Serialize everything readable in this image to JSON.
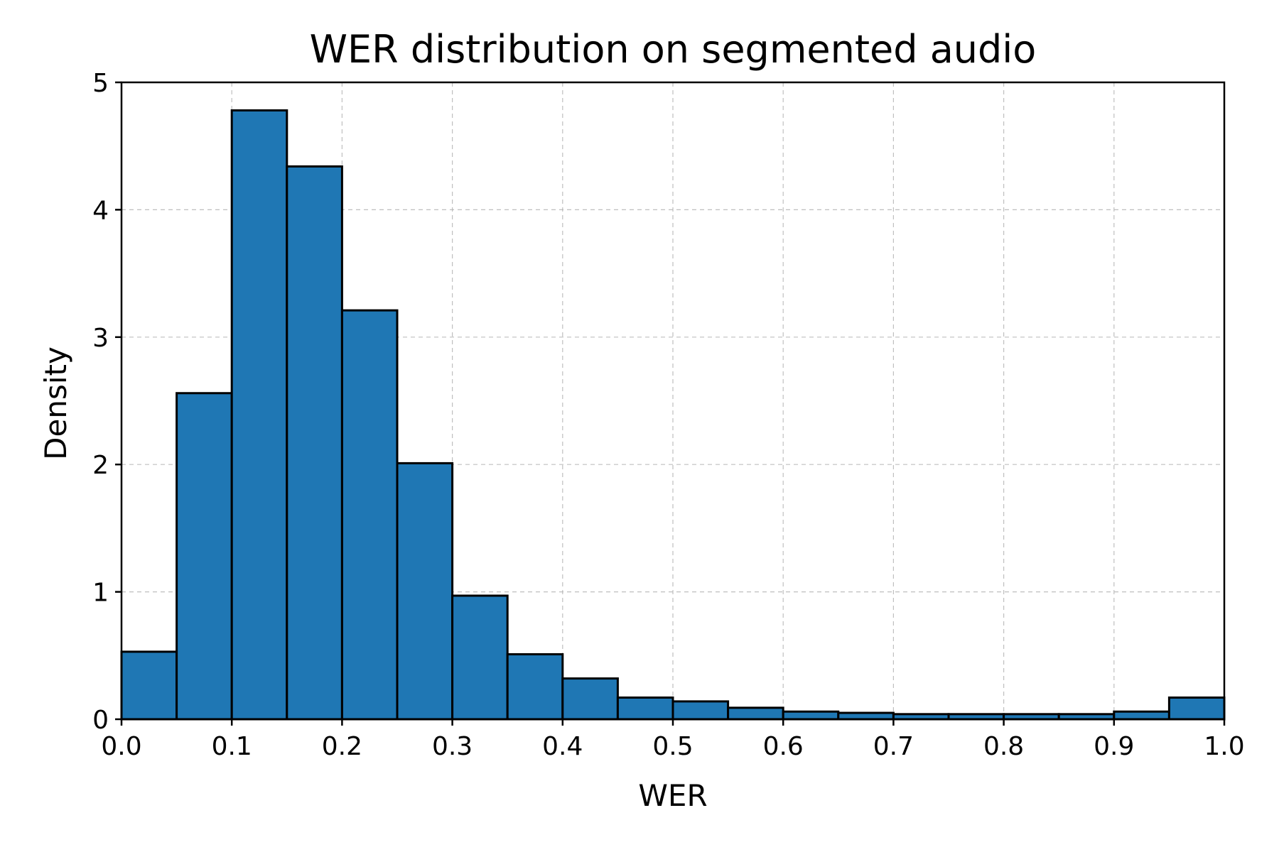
{
  "chart_data": {
    "type": "bar",
    "title": "WER distribution on segmented audio",
    "xlabel": "WER",
    "ylabel": "Density",
    "xlim": [
      0.0,
      1.0
    ],
    "ylim": [
      0,
      5
    ],
    "grid": true,
    "bar_color": "#1f77b4",
    "edge_color": "#000000",
    "bin_edges": [
      0.0,
      0.05,
      0.1,
      0.15,
      0.2,
      0.25,
      0.3,
      0.35,
      0.4,
      0.45,
      0.5,
      0.55,
      0.6,
      0.65,
      0.7,
      0.75,
      0.8,
      0.85,
      0.9,
      0.95,
      1.0
    ],
    "values": [
      0.53,
      2.56,
      4.78,
      4.34,
      3.21,
      2.01,
      0.97,
      0.51,
      0.32,
      0.17,
      0.14,
      0.09,
      0.06,
      0.05,
      0.04,
      0.04,
      0.04,
      0.04,
      0.06,
      0.17
    ],
    "x_ticks": [
      "0.0",
      "0.1",
      "0.2",
      "0.3",
      "0.4",
      "0.5",
      "0.6",
      "0.7",
      "0.8",
      "0.9",
      "1.0"
    ],
    "y_ticks": [
      "0",
      "1",
      "2",
      "3",
      "4",
      "5"
    ]
  }
}
